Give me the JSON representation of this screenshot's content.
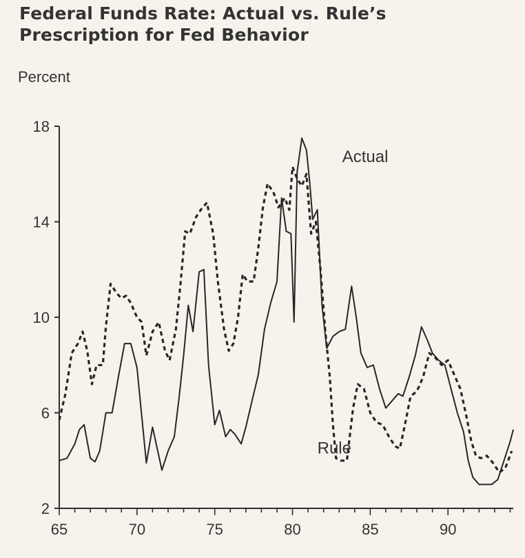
{
  "title_line1": "Federal Funds Rate:  Actual vs. Rule’s",
  "title_line2": "Prescription for Fed Behavior",
  "chart_data": {
    "type": "line",
    "title": "Federal Funds Rate:  Actual vs. Rule’s Prescription for Fed Behavior",
    "ylabel": "Percent",
    "xlabel": "",
    "xlim": [
      65,
      94.2
    ],
    "ylim": [
      2,
      18
    ],
    "xticks": [
      65,
      70,
      75,
      80,
      85,
      90
    ],
    "xtick_labels": [
      "65",
      "70",
      "75",
      "80",
      "85",
      "90"
    ],
    "yticks": [
      2,
      6,
      10,
      14,
      18
    ],
    "ytick_labels": [
      "2",
      "6",
      "10",
      "14",
      "18"
    ],
    "grid": false,
    "legend": "none",
    "series": [
      {
        "name": "Actual",
        "style": "solid",
        "x": [
          65,
          65.5,
          66,
          66.3,
          66.6,
          67,
          67.3,
          67.6,
          68,
          68.4,
          68.8,
          69.2,
          69.6,
          70,
          70.3,
          70.6,
          71,
          71.3,
          71.6,
          72,
          72.4,
          72.7,
          73,
          73.3,
          73.6,
          74,
          74.3,
          74.6,
          75,
          75.3,
          75.7,
          76,
          76.3,
          76.7,
          77,
          77.4,
          77.8,
          78.2,
          78.6,
          79,
          79.3,
          79.6,
          79.9,
          80.1,
          80.3,
          80.6,
          80.9,
          81.1,
          81.3,
          81.6,
          81.9,
          82.2,
          82.6,
          83,
          83.4,
          83.8,
          84.1,
          84.4,
          84.8,
          85.2,
          85.6,
          86,
          86.4,
          86.8,
          87.1,
          87.5,
          87.9,
          88.3,
          88.7,
          89,
          89.4,
          89.8,
          90.2,
          90.6,
          91,
          91.3,
          91.6,
          92,
          92.4,
          92.8,
          93.2,
          93.6,
          94,
          94.2
        ],
        "values": [
          4.0,
          4.1,
          4.7,
          5.3,
          5.5,
          4.1,
          3.95,
          4.4,
          6.0,
          6.0,
          7.5,
          8.9,
          8.9,
          7.9,
          5.9,
          3.9,
          5.4,
          4.5,
          3.6,
          4.4,
          5.0,
          6.6,
          8.4,
          10.5,
          9.4,
          11.9,
          12.0,
          8.0,
          5.5,
          6.1,
          5.0,
          5.3,
          5.1,
          4.7,
          5.4,
          6.5,
          7.6,
          9.5,
          10.6,
          11.5,
          15.0,
          13.6,
          13.5,
          9.8,
          16.1,
          17.5,
          17.0,
          15.7,
          14.1,
          14.5,
          10.5,
          8.7,
          9.2,
          9.4,
          9.5,
          11.3,
          10.0,
          8.5,
          7.9,
          8.0,
          7.0,
          6.2,
          6.5,
          6.8,
          6.7,
          7.5,
          8.4,
          9.6,
          9.0,
          8.5,
          8.2,
          8.0,
          7.0,
          6.0,
          5.2,
          4.0,
          3.3,
          3.0,
          3.0,
          3.0,
          3.2,
          4.0,
          4.8,
          5.3
        ]
      },
      {
        "name": "Rule",
        "style": "dashed",
        "x": [
          65,
          65.4,
          65.8,
          66.2,
          66.5,
          66.8,
          67.1,
          67.4,
          67.8,
          68,
          68.3,
          68.7,
          69,
          69.3,
          69.6,
          70,
          70.3,
          70.6,
          71,
          71.4,
          71.8,
          72.1,
          72.5,
          72.8,
          73.1,
          73.4,
          73.8,
          74.1,
          74.5,
          74.9,
          75.2,
          75.6,
          75.9,
          76.2,
          76.5,
          76.8,
          77.1,
          77.5,
          77.8,
          78.1,
          78.4,
          78.8,
          79.1,
          79.5,
          79.8,
          80,
          80.3,
          80.6,
          80.9,
          81.2,
          81.5,
          81.8,
          82.1,
          82.4,
          82.6,
          82.8,
          83.1,
          83.5,
          83.9,
          84.2,
          84.6,
          85,
          85.4,
          85.8,
          86.2,
          86.6,
          86.9,
          87.2,
          87.6,
          88,
          88.4,
          88.8,
          89.2,
          89.6,
          90,
          90.4,
          90.8,
          91.2,
          91.5,
          91.8,
          92.1,
          92.5,
          92.9,
          93.3,
          93.7,
          94.1
        ],
        "values": [
          5.7,
          6.8,
          8.5,
          8.9,
          9.4,
          8.6,
          7.2,
          8.0,
          8.0,
          9.6,
          11.4,
          11.0,
          10.8,
          10.9,
          10.6,
          10.0,
          9.8,
          8.4,
          9.4,
          9.8,
          8.6,
          8.2,
          9.5,
          11.4,
          13.6,
          13.5,
          14.2,
          14.5,
          14.8,
          13.5,
          11.5,
          9.5,
          8.6,
          8.9,
          10.0,
          11.8,
          11.5,
          11.5,
          12.9,
          14.6,
          15.6,
          15.2,
          14.6,
          15.0,
          14.5,
          16.3,
          15.8,
          15.5,
          16.0,
          13.5,
          14.0,
          12.0,
          9.5,
          7.5,
          5.5,
          4.1,
          4.0,
          4.0,
          6.2,
          7.2,
          7.0,
          6.0,
          5.6,
          5.5,
          5.0,
          4.6,
          4.5,
          5.4,
          6.7,
          6.9,
          7.5,
          8.5,
          8.3,
          8.0,
          8.2,
          7.6,
          7.0,
          5.8,
          4.8,
          4.2,
          4.1,
          4.2,
          3.9,
          3.5,
          3.7,
          4.4
        ]
      }
    ],
    "annotations": [
      {
        "text": "Actual",
        "x": 83.2,
        "y": 16.5
      },
      {
        "text": "Rule",
        "x": 81.6,
        "y": 4.3
      }
    ]
  }
}
